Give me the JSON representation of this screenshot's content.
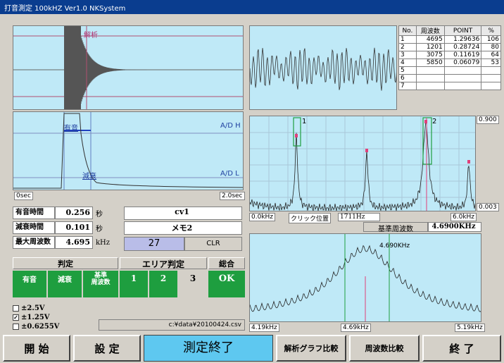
{
  "window": {
    "title": "打音測定 100kHZ   Ver1.0  NKSystem"
  },
  "waveform": {
    "top_label": "解析",
    "mid_label_left": "有音",
    "mid_label_right": "A/D H",
    "low_label_left": "減衰",
    "low_label_right": "A/D L",
    "x_start": "0sec",
    "x_end": "2.0sec"
  },
  "measurements": {
    "rows": [
      {
        "label": "有音時間",
        "value": "0.256",
        "unit": "秒"
      },
      {
        "label": "減衰時間",
        "value": "0.101",
        "unit": "秒"
      },
      {
        "label": "最大周波数",
        "value": "4.695",
        "unit": "kHz"
      }
    ],
    "name_field": "cv1",
    "memo_field": "メモ2",
    "count": "27",
    "clr_label": "CLR"
  },
  "judgement": {
    "header_judge": "判定",
    "header_area": "エリア判定",
    "header_total": "総合",
    "cells": [
      "有音",
      "減衰",
      "基準\n周波数"
    ],
    "area_cells": [
      "1",
      "2",
      "3"
    ],
    "total_value": "OK"
  },
  "ranges": [
    {
      "label": "±2.5V",
      "checked": false
    },
    {
      "label": "±1.25V",
      "checked": true
    },
    {
      "label": "±0.6255V",
      "checked": false
    }
  ],
  "file_path": "c:¥data¥20100424.csv",
  "peak_table": {
    "headers": [
      "No.",
      "周波数",
      "POINT",
      "%"
    ],
    "rows": [
      [
        "1",
        "4695",
        "1.29636",
        "106"
      ],
      [
        "2",
        "1201",
        "0.28724",
        "80"
      ],
      [
        "3",
        "3075",
        "0.11619",
        "64"
      ],
      [
        "4",
        "5850",
        "0.06079",
        "53"
      ],
      [
        "5",
        "",
        "",
        ""
      ],
      [
        "6",
        "",
        "",
        ""
      ],
      [
        "7",
        "",
        "",
        ""
      ]
    ]
  },
  "spectrum": {
    "y_top": "0.900",
    "y_bottom": "0.003",
    "x_start": "0.0kHz",
    "x_end": "6.0kHz",
    "marker1": "1",
    "marker2": "2",
    "click_label": "クリック位置",
    "click_value": "1711Hz",
    "ref_label": "基準周波数",
    "ref_value": "4.6900KHz"
  },
  "zoom": {
    "peak_label": "4.690KHz",
    "x_left": "4.19kHz",
    "x_mid": "4.69kHz",
    "x_right": "5.19kHz"
  },
  "buttons": {
    "start": "開 始",
    "settings": "設 定",
    "status": "測定終了",
    "graph_compare": "解析グラフ比較",
    "freq_compare": "周波数比較",
    "exit": "終 了"
  },
  "colors": {
    "panel_bg": "#bfe9f7",
    "title_bg": "#0a3d8f",
    "judge_green": "#1e9e3f",
    "status_bg": "#5ec8f0"
  }
}
